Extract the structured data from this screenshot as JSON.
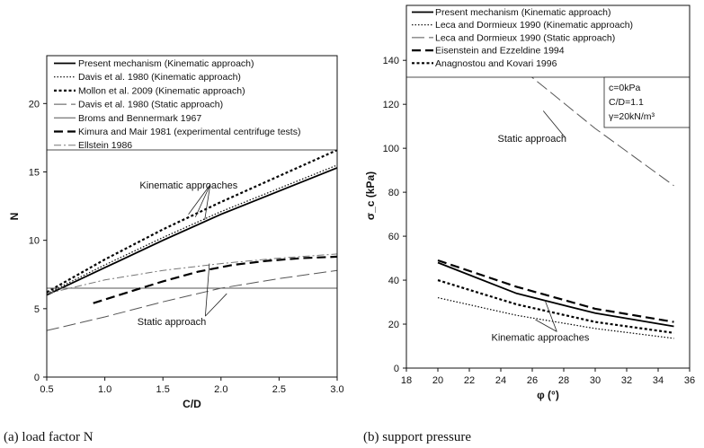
{
  "chart_data": [
    {
      "type": "line",
      "caption": "(a) load factor N",
      "xlabel": "C/D",
      "ylabel": "N",
      "xlim": [
        0.5,
        3.0
      ],
      "ylim": [
        0,
        23.5
      ],
      "xticks": [
        0.5,
        1.0,
        1.5,
        2.0,
        2.5,
        3.0
      ],
      "xtick_labels": [
        "0.5",
        "1.0",
        "1.5",
        "2.0",
        "2.5",
        "3.0"
      ],
      "yticks": [
        0,
        5,
        10,
        15,
        20
      ],
      "ytick_labels": [
        "0",
        "5",
        "10",
        "15",
        "20"
      ],
      "legend_placement": "top",
      "series": [
        {
          "name": "Present mechanism (Kinematic approach)",
          "style": "solid",
          "width": 1.8,
          "color": "#000000",
          "x": [
            0.5,
            1.0,
            1.5,
            2.0,
            2.5,
            3.0
          ],
          "y": [
            6.0,
            8.0,
            10.0,
            11.9,
            13.6,
            15.3
          ]
        },
        {
          "name": "Davis et al. 1980 (Kinematic approach)",
          "style": "dotted",
          "width": 1.2,
          "color": "#000000",
          "x": [
            0.5,
            1.0,
            1.5,
            2.0,
            2.5,
            3.0
          ],
          "y": [
            6.1,
            8.2,
            10.2,
            12.1,
            13.8,
            15.5
          ]
        },
        {
          "name": "Mollon et al. 2009 (Kinematic approach)",
          "style": "dashdense",
          "width": 2.2,
          "color": "#000000",
          "x": [
            0.5,
            1.0,
            1.5,
            2.0,
            2.5,
            3.0
          ],
          "y": [
            6.2,
            8.6,
            10.8,
            12.8,
            14.7,
            16.6
          ]
        },
        {
          "name": "Davis et al. 1980 (Static approach)",
          "style": "longdash",
          "width": 1.0,
          "color": "#555555",
          "x": [
            0.5,
            1.0,
            1.5,
            2.0,
            2.5,
            3.0
          ],
          "y": [
            3.4,
            4.4,
            5.5,
            6.5,
            7.2,
            7.8
          ]
        },
        {
          "name": "Broms and Bennermark 1967",
          "style": "solid",
          "width": 1.0,
          "color": "#555555",
          "x": [
            0.5,
            3.0
          ],
          "y": [
            6.5,
            6.5
          ]
        },
        {
          "name": "Kimura and Mair 1981 (experimental centrifuge tests)",
          "style": "bigdash",
          "width": 2.2,
          "color": "#000000",
          "x": [
            0.9,
            1.2,
            1.5,
            1.8,
            2.1,
            2.4,
            2.7,
            3.0
          ],
          "y": [
            5.4,
            6.2,
            7.0,
            7.7,
            8.2,
            8.5,
            8.7,
            8.8
          ]
        },
        {
          "name": "Ellstein 1986",
          "style": "dashdot",
          "width": 1.0,
          "color": "#777777",
          "x": [
            0.5,
            1.0,
            1.5,
            2.0,
            2.5,
            3.0
          ],
          "y": [
            6.1,
            7.1,
            7.8,
            8.3,
            8.7,
            9.0
          ]
        }
      ],
      "annotations": [
        {
          "text": "Kinematic approaches",
          "x": 1.3,
          "y": 13.8,
          "targets": [
            [
              1.72,
              11.9
            ],
            [
              1.78,
              11.7
            ],
            [
              1.86,
              11.5
            ]
          ]
        },
        {
          "text": "Static approach",
          "x": 1.28,
          "y": 3.8,
          "targets": [
            [
              1.9,
              8.3
            ],
            [
              2.05,
              6.1
            ]
          ]
        }
      ]
    },
    {
      "type": "line",
      "caption": "(b) support pressure",
      "xlabel": "φ (°)",
      "ylabel": "σ_c (kPa)",
      "xlim": [
        18,
        36
      ],
      "ylim": [
        0,
        165
      ],
      "xticks": [
        18,
        20,
        22,
        24,
        26,
        28,
        30,
        32,
        34,
        36
      ],
      "xtick_labels": [
        "18",
        "20",
        "22",
        "24",
        "26",
        "28",
        "30",
        "32",
        "34",
        "36"
      ],
      "yticks": [
        0,
        20,
        40,
        60,
        80,
        100,
        120,
        140
      ],
      "ytick_labels": [
        "0",
        "20",
        "40",
        "60",
        "80",
        "100",
        "120",
        "140"
      ],
      "legend_placement": "top",
      "params_box": [
        "c=0kPa",
        "C/D=1.1",
        "γ=20kN/m³"
      ],
      "series": [
        {
          "name": "Present mechanism (Kinematic approach)",
          "style": "solid",
          "width": 1.8,
          "color": "#000000",
          "x": [
            20,
            25,
            30,
            35
          ],
          "y": [
            48,
            34,
            25,
            19
          ]
        },
        {
          "name": "Leca and Dormieux 1990 (Kinematic approach)",
          "style": "dotted",
          "width": 1.2,
          "color": "#000000",
          "x": [
            20,
            25,
            30,
            35
          ],
          "y": [
            32,
            24,
            18,
            13.5
          ]
        },
        {
          "name": "Leca and Dormieux 1990 (Static approach)",
          "style": "longdash",
          "width": 1.0,
          "color": "#555555",
          "x": [
            20,
            25,
            30,
            35
          ],
          "y": [
            173,
            138,
            109,
            83
          ]
        },
        {
          "name": "Eisenstein and Ezzeldine 1994",
          "style": "bigdash",
          "width": 2.2,
          "color": "#000000",
          "x": [
            20,
            25,
            30,
            35
          ],
          "y": [
            49,
            37,
            27,
            21
          ]
        },
        {
          "name": "Anagnostou and Kovari 1996",
          "style": "dashdense",
          "width": 2.2,
          "color": "#000000",
          "x": [
            20,
            25,
            30,
            35
          ],
          "y": [
            40,
            29,
            21,
            16
          ]
        }
      ],
      "annotations": [
        {
          "text": "Static approach",
          "x": 23.8,
          "y": 103,
          "targets": [
            [
              26.7,
              117
            ]
          ]
        },
        {
          "text": "Kinematic approaches",
          "x": 23.4,
          "y": 12.5,
          "targets": [
            [
              26.8,
              31
            ],
            [
              26.2,
              22
            ]
          ]
        }
      ]
    }
  ]
}
